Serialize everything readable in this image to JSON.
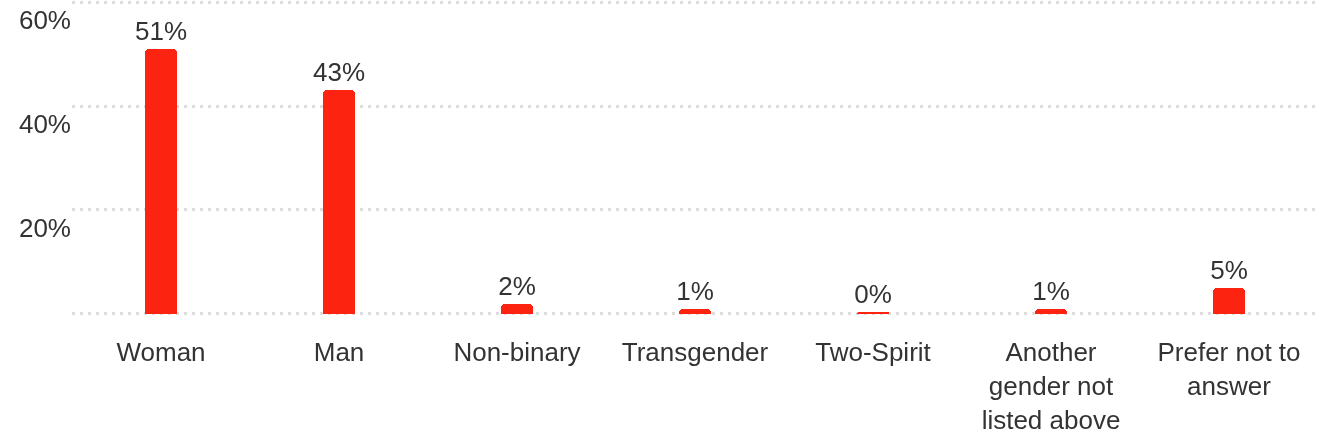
{
  "chart_data": {
    "type": "bar",
    "categories": [
      "Woman",
      "Man",
      "Non-binary",
      "Transgender",
      "Two-Spirit",
      "Another gender not listed above",
      "Prefer not to answer"
    ],
    "values": [
      51,
      43,
      2,
      1,
      0.4,
      1,
      5
    ],
    "value_labels": [
      "51%",
      "43%",
      "2%",
      "1%",
      "0%",
      "1%",
      "5%"
    ],
    "color": "#fc2411",
    "ylim": [
      -0.4,
      60.4
    ],
    "yticks": [
      {
        "value": 0,
        "label": null
      },
      {
        "value": 20,
        "label": "20%"
      },
      {
        "value": 40,
        "label": "40%"
      },
      {
        "value": 60,
        "label": "60%"
      }
    ],
    "grid": "y"
  }
}
